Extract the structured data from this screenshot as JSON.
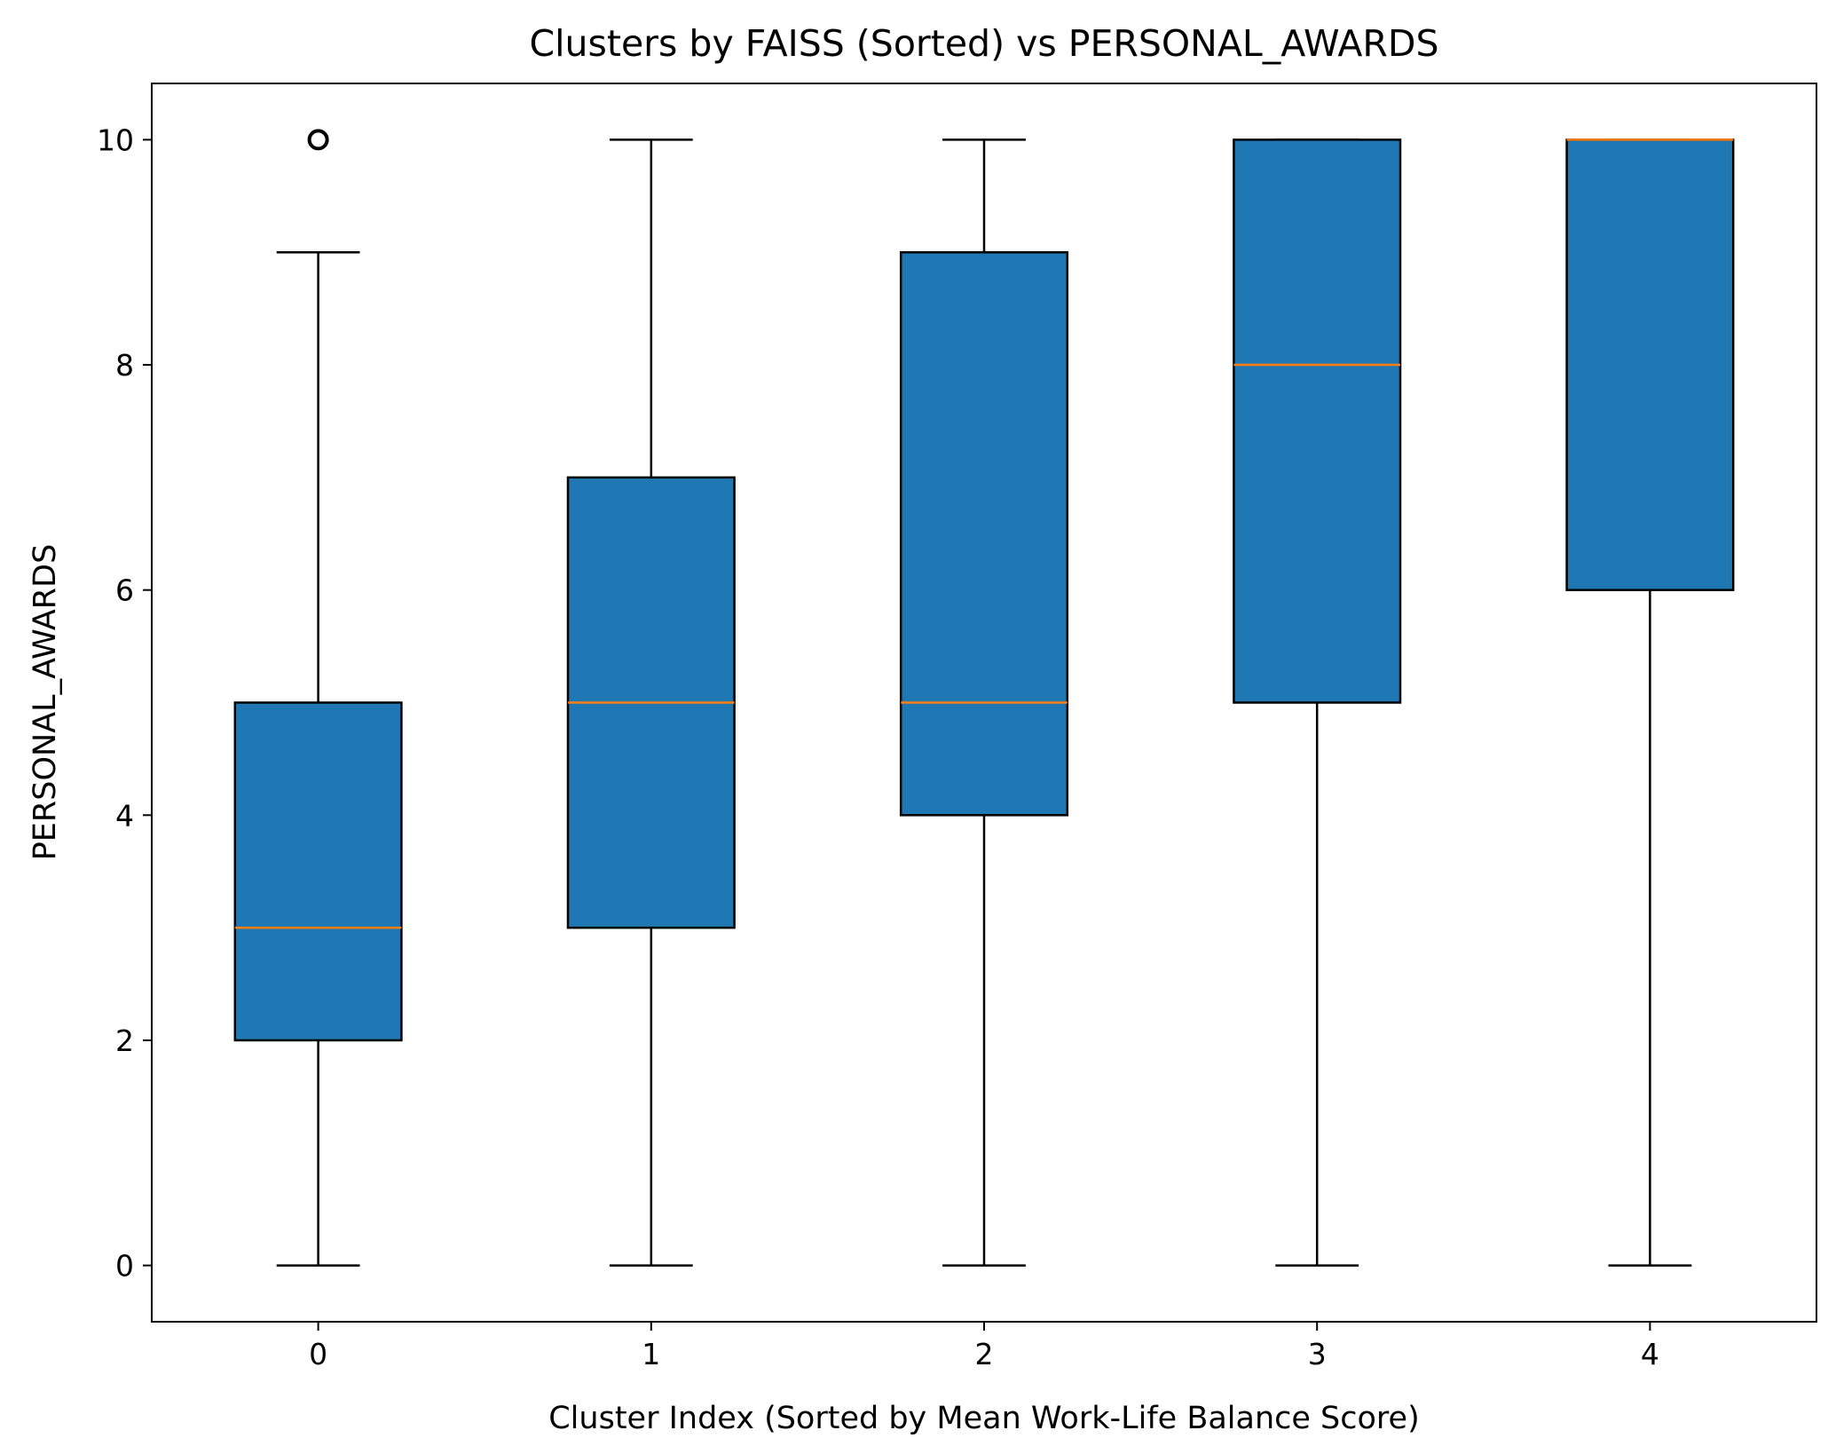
{
  "chart_data": {
    "type": "box",
    "title": "Clusters by FAISS (Sorted) vs PERSONAL_AWARDS",
    "xlabel": "Cluster Index (Sorted by Mean Work-Life Balance Score)",
    "ylabel": "PERSONAL_AWARDS",
    "categories": [
      "0",
      "1",
      "2",
      "3",
      "4"
    ],
    "ylim": [
      -0.5,
      10.5
    ],
    "yticks": [
      0,
      2,
      4,
      6,
      8,
      10
    ],
    "ytick_labels": [
      "0",
      "2",
      "4",
      "6",
      "8",
      "10"
    ],
    "grid": false,
    "boxes": [
      {
        "category": "0",
        "whisker_low": 0,
        "q1": 2,
        "median": 3,
        "q3": 5,
        "whisker_high": 9,
        "outliers": [
          10
        ]
      },
      {
        "category": "1",
        "whisker_low": 0,
        "q1": 3,
        "median": 5,
        "q3": 7,
        "whisker_high": 10,
        "outliers": []
      },
      {
        "category": "2",
        "whisker_low": 0,
        "q1": 4,
        "median": 5,
        "q3": 9,
        "whisker_high": 10,
        "outliers": []
      },
      {
        "category": "3",
        "whisker_low": 0,
        "q1": 5,
        "median": 8,
        "q3": 10,
        "whisker_high": 10,
        "outliers": []
      },
      {
        "category": "4",
        "whisker_low": 0,
        "q1": 6,
        "median": 10,
        "q3": 10,
        "whisker_high": 10,
        "outliers": []
      }
    ],
    "colors": {
      "box_fill": "#1f77b4",
      "median": "#ff7f0e",
      "edge": "#000000"
    }
  }
}
